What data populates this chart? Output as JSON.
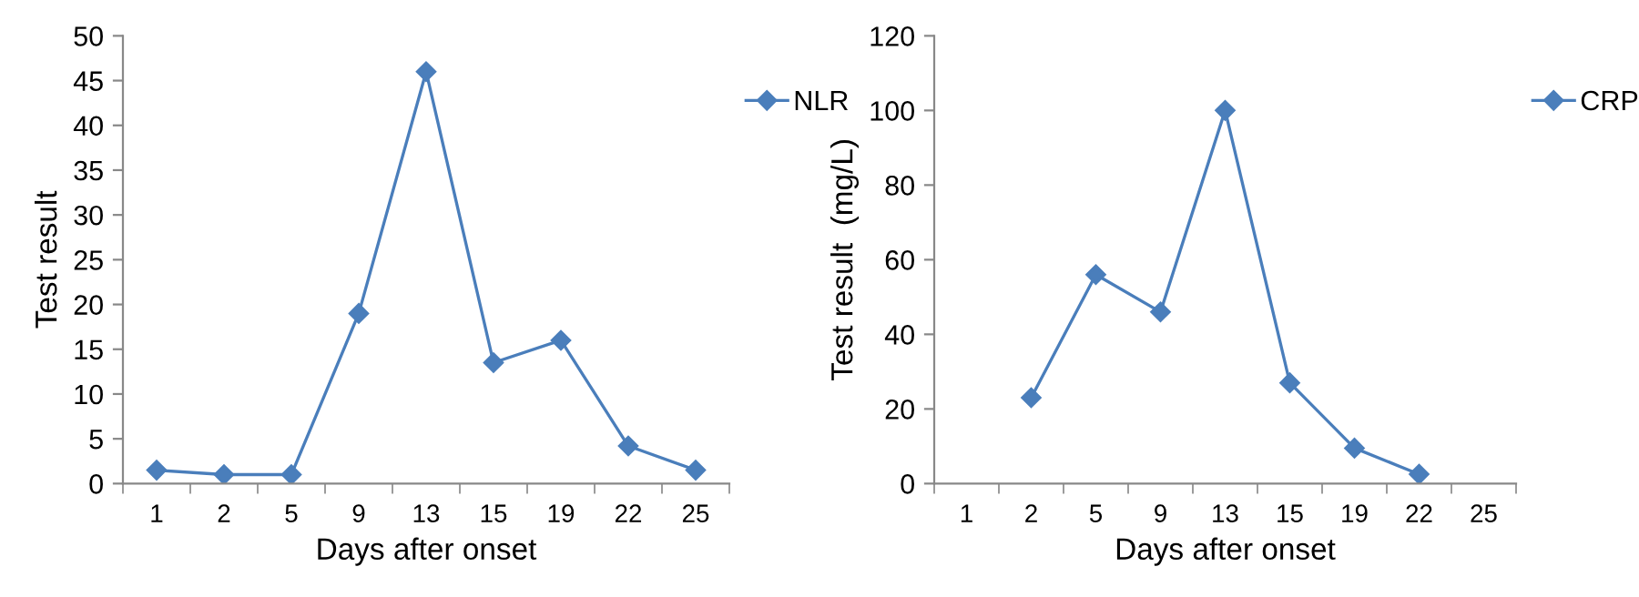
{
  "chart_data": [
    {
      "type": "line",
      "xlabel": "Days after onset",
      "ylabel": "Test result",
      "categories": [
        "1",
        "2",
        "5",
        "9",
        "13",
        "15",
        "19",
        "22",
        "25"
      ],
      "series": [
        {
          "name": "NLR",
          "color": "#4a7ebb",
          "values": [
            1.5,
            1,
            1,
            19,
            46,
            13.5,
            16,
            4.2,
            1.5
          ]
        }
      ],
      "ylim": [
        0,
        50
      ],
      "yticks": [
        0,
        5,
        10,
        15,
        20,
        25,
        30,
        35,
        40,
        45,
        50
      ],
      "marker": "diamond",
      "line_style": "solid",
      "legend": "top right",
      "grid": false
    },
    {
      "type": "line",
      "xlabel": "Days after onset",
      "ylabel": "Test result  (mg/L)",
      "categories": [
        "1",
        "2",
        "5",
        "9",
        "13",
        "15",
        "19",
        "22",
        "25"
      ],
      "series": [
        {
          "name": "CRP",
          "color": "#4a7ebb",
          "values": [
            null,
            23,
            56,
            46,
            100,
            27,
            9.5,
            2.5,
            null
          ]
        }
      ],
      "ylim": [
        0,
        120
      ],
      "yticks": [
        0,
        20,
        40,
        60,
        80,
        100,
        120
      ],
      "marker": "diamond",
      "line_style": "solid",
      "legend": "top right",
      "grid": false
    }
  ]
}
